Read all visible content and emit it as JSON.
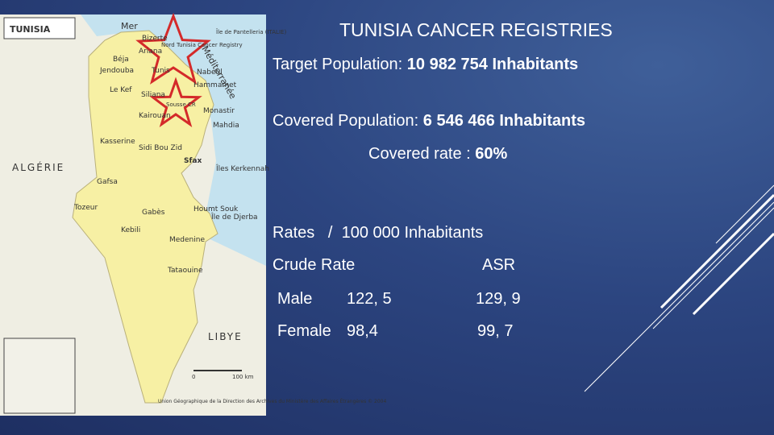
{
  "title": "TUNISIA CANCER REGISTRIES",
  "facts": [
    {
      "label": "Target Population:",
      "value": "10 982 754 Inhabitants"
    },
    {
      "label": "Covered Population:",
      "value": "6 546 466 Inhabitants"
    },
    {
      "label": "Covered rate :",
      "value": "60%"
    }
  ],
  "rates": {
    "heading": "Rates   /  100 000 Inhabitants",
    "columns": [
      "Crude Rate",
      "ASR"
    ],
    "rows": [
      [
        "Male",
        "122, 5",
        "129, 9"
      ],
      [
        "Female",
        "98,4",
        "99, 7"
      ]
    ]
  },
  "map": {
    "inset_title": "TUNISIA",
    "countries": [
      "ALGÉRIE",
      "LIBYE"
    ],
    "sea": [
      "Mer",
      "Méditerranée"
    ],
    "island_note": "Île de Pantelleria (ITALIE)",
    "registries": [
      "Nord Tunisia Cancer Registry",
      "Sousse CR"
    ],
    "cities": [
      "Bizerte",
      "Béja",
      "Jendouba",
      "Le Kef",
      "Ariana",
      "Tunis",
      "Nabeul",
      "Hammamet",
      "Siliana",
      "Monastir",
      "Kairouan",
      "Mahdia",
      "Kasserine",
      "Sidi Bou Zid",
      "Sfax",
      "Îles Kerkennah",
      "Gafsa",
      "Tozeur",
      "Gabès",
      "Houmt Souk",
      "Île de Djerba",
      "Kebili",
      "Medenine",
      "Tataouine"
    ],
    "scale": [
      "0",
      "100 km"
    ],
    "credit": "Union Géographique de la Direction des Archives du Ministère des Affaires Étrangères © 2004"
  }
}
